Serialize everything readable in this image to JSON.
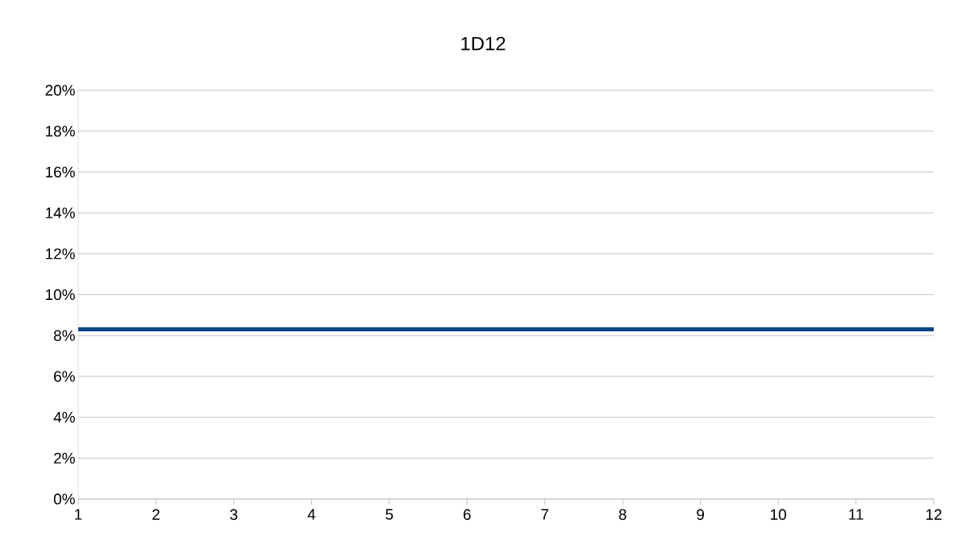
{
  "chart_data": {
    "type": "line",
    "title": "1D12",
    "categories": [
      "1",
      "2",
      "3",
      "4",
      "5",
      "6",
      "7",
      "8",
      "9",
      "10",
      "11",
      "12"
    ],
    "series": [
      {
        "color": "#004586",
        "values": [
          8.3,
          8.3,
          8.3,
          8.3,
          8.3,
          8.3,
          8.3,
          8.3,
          8.3,
          8.3,
          8.3,
          8.3
        ]
      }
    ],
    "ylim": [
      0,
      20
    ],
    "yticks": [
      {
        "value": 0,
        "label": "0%"
      },
      {
        "value": 2,
        "label": "2%"
      },
      {
        "value": 4,
        "label": "4%"
      },
      {
        "value": 6,
        "label": "6%"
      },
      {
        "value": 8,
        "label": "8%"
      },
      {
        "value": 10,
        "label": "10%"
      },
      {
        "value": 12,
        "label": "12%"
      },
      {
        "value": 14,
        "label": "14%"
      },
      {
        "value": 16,
        "label": "16%"
      },
      {
        "value": 18,
        "label": "18%"
      },
      {
        "value": 20,
        "label": "20%"
      }
    ],
    "grid": "y"
  }
}
